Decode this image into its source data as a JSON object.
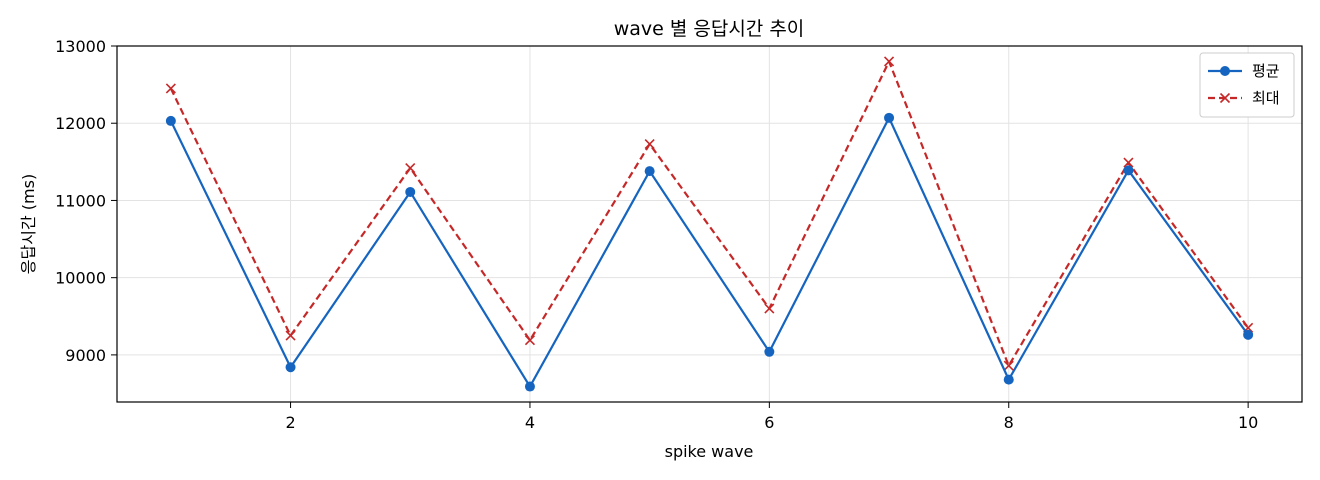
{
  "chart_data": {
    "type": "line",
    "title": "wave 별 응답시간 추이",
    "xlabel": "spike wave",
    "ylabel": "응답시간 (ms)",
    "x": [
      1,
      2,
      3,
      4,
      5,
      6,
      7,
      8,
      9,
      10
    ],
    "xlim": [
      0.55,
      10.45
    ],
    "ylim": [
      8390,
      13000
    ],
    "xticks": [
      2,
      4,
      6,
      8,
      10
    ],
    "yticks": [
      9000,
      10000,
      11000,
      12000,
      13000
    ],
    "grid": true,
    "legend_position": "top-right",
    "series": [
      {
        "name": "평균",
        "values": [
          12030,
          8840,
          11110,
          8590,
          11380,
          9040,
          12070,
          8680,
          11390,
          9260
        ],
        "color": "#1565c0",
        "line_style": "solid",
        "marker": "circle"
      },
      {
        "name": "최대",
        "values": [
          12450,
          9250,
          11420,
          9190,
          11730,
          9600,
          12800,
          8860,
          11490,
          9350
        ],
        "color": "#c62828",
        "line_style": "dashed",
        "marker": "x"
      }
    ]
  }
}
